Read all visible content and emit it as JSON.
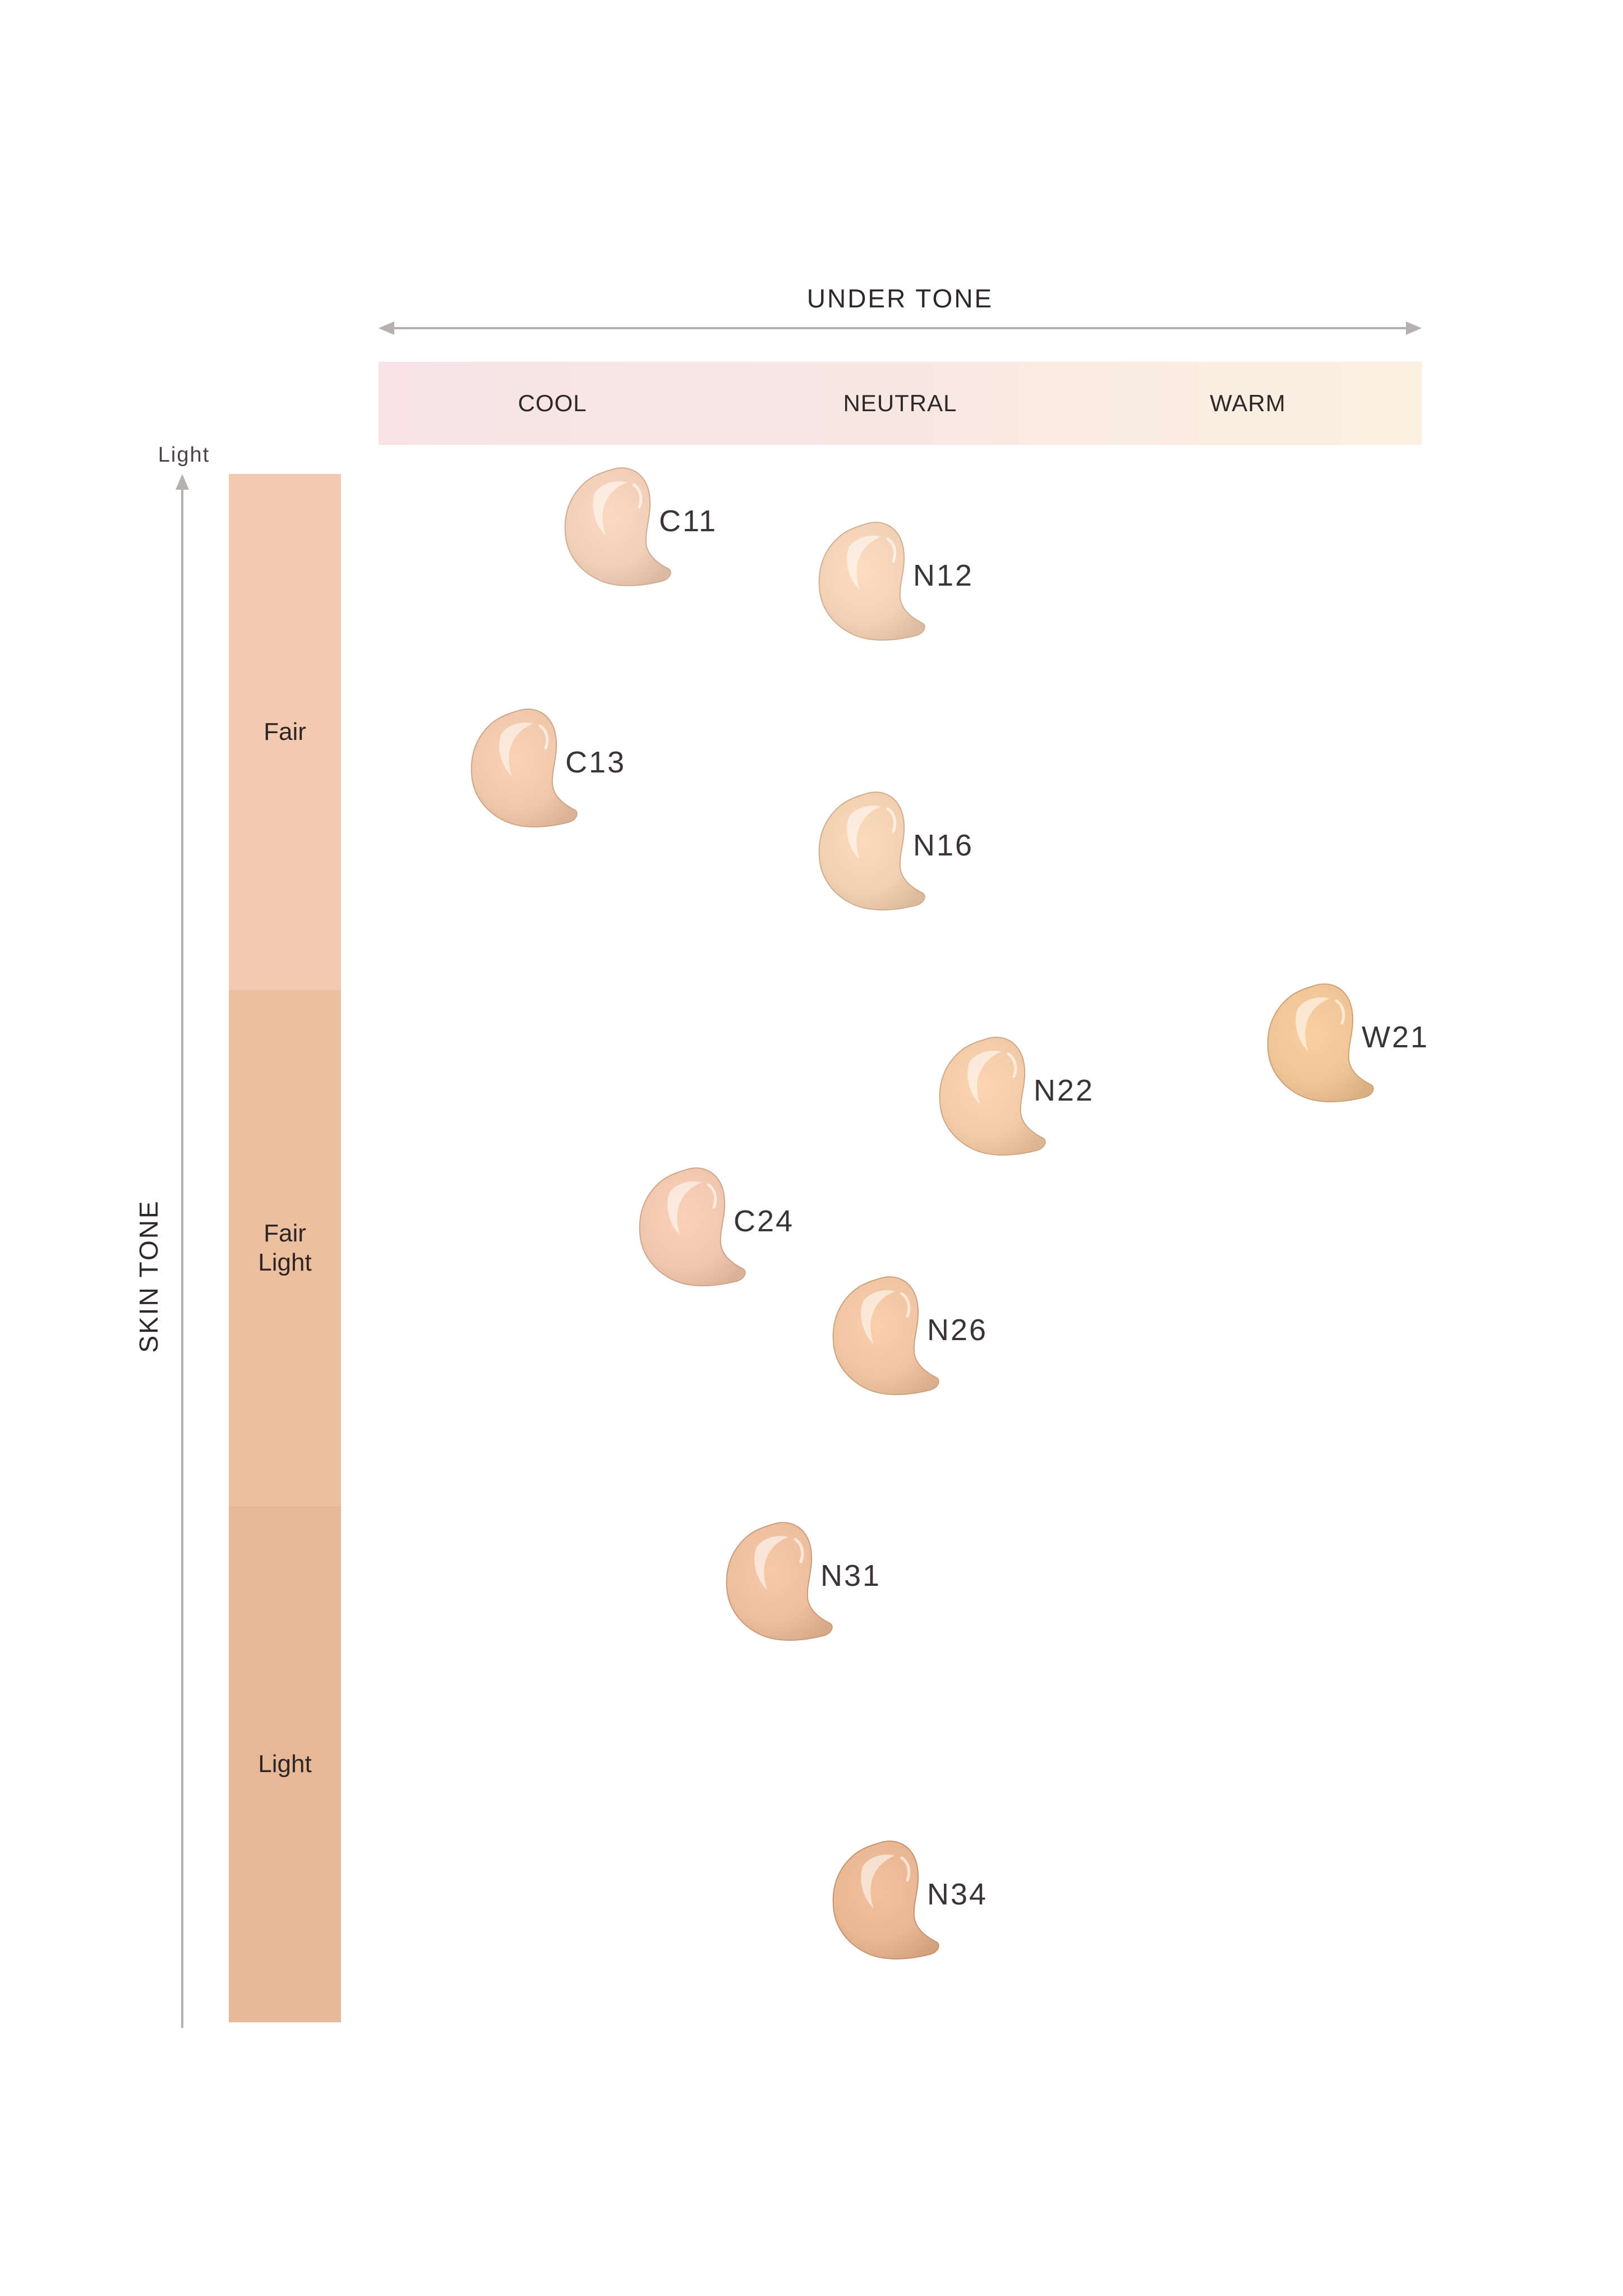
{
  "under_tone": {
    "title": "UNDER TONE",
    "columns": [
      "COOL",
      "NEUTRAL",
      "WARM"
    ]
  },
  "skin_tone": {
    "title": "SKIN TONE",
    "arrow_label": "Light",
    "levels": [
      {
        "label": "Fair",
        "color": "#f2cab0"
      },
      {
        "label": "Fair\nLight",
        "color": "#ecbf9f"
      },
      {
        "label": "Light",
        "color": "#e7b896"
      }
    ]
  },
  "shades": [
    {
      "code": "C11",
      "color": "#f2cfb6"
    },
    {
      "code": "N12",
      "color": "#f3d2b6"
    },
    {
      "code": "C13",
      "color": "#f0c8ac"
    },
    {
      "code": "N16",
      "color": "#f3d0b1"
    },
    {
      "code": "W21",
      "color": "#f0c597"
    },
    {
      "code": "N22",
      "color": "#f2cba8"
    },
    {
      "code": "C24",
      "color": "#f1c8ae"
    },
    {
      "code": "N26",
      "color": "#efc6a1"
    },
    {
      "code": "N31",
      "color": "#eebf9f"
    },
    {
      "code": "N34",
      "color": "#e9b792"
    }
  ]
}
